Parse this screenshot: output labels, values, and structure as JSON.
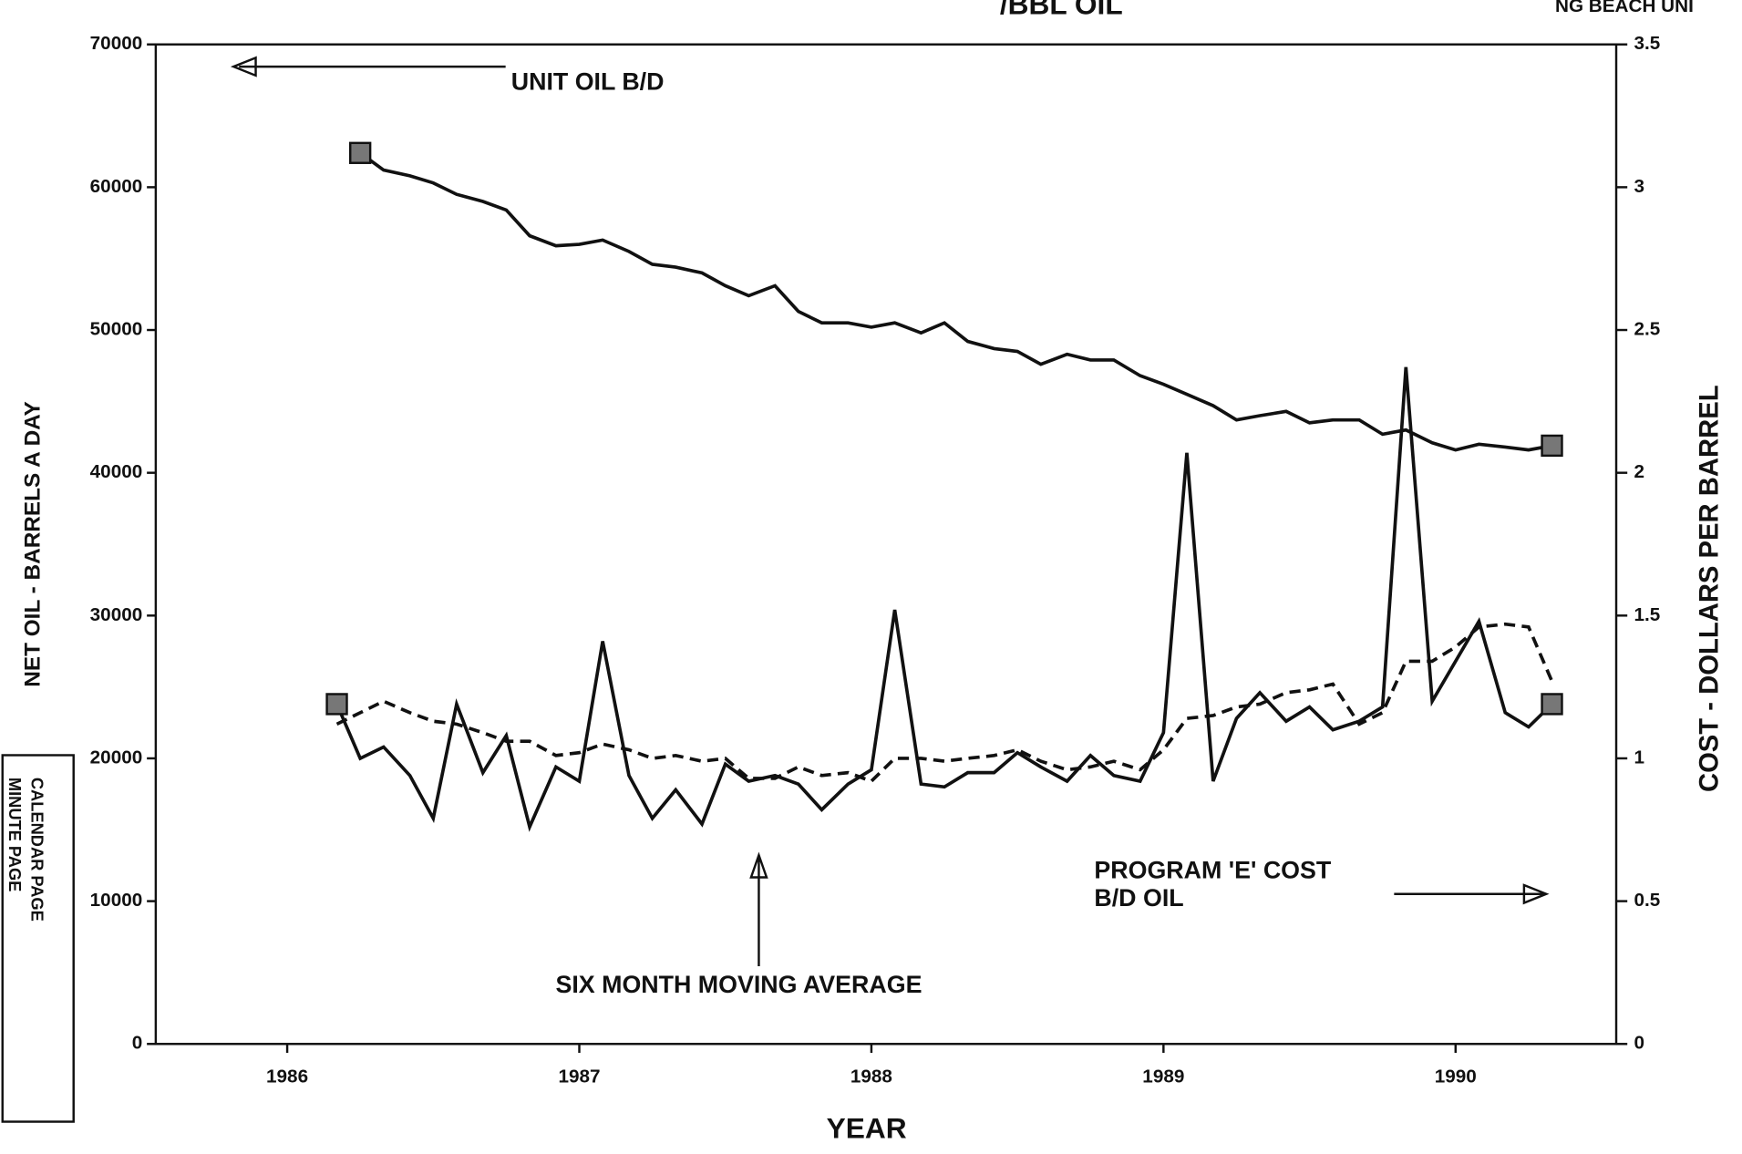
{
  "header": {
    "title": "/BBL OIL",
    "corner": "NG BEACH UNI"
  },
  "stamp": {
    "line1": "CALENDAR PAGE",
    "line2": "MINUTE PAGE"
  },
  "chart_data": {
    "type": "line",
    "xlabel": "YEAR",
    "ylabel": "NET OIL - BARRELS A DAY",
    "y2label": "COST - DOLLARS PER BARREL",
    "xlim": [
      1985.55,
      1990.55
    ],
    "xticks": [
      1986,
      1987,
      1988,
      1989,
      1990
    ],
    "ylim": [
      0,
      70000
    ],
    "yticks": [
      0,
      10000,
      20000,
      30000,
      40000,
      50000,
      60000,
      70000
    ],
    "y2lim": [
      0,
      3.5
    ],
    "y2ticks": [
      0,
      0.5,
      1,
      1.5,
      2,
      2.5,
      3,
      3.5
    ],
    "annotations": [
      "B/D OIL"
    ],
    "series": [
      {
        "name": "UNIT OIL B/D",
        "color": "#111111",
        "dash": false,
        "x": [
          1986.25,
          1986.33,
          1986.42,
          1986.5,
          1986.58,
          1986.67,
          1986.75,
          1986.83,
          1986.92,
          1987.0,
          1987.08,
          1987.17,
          1987.25,
          1987.33,
          1987.42,
          1987.5,
          1987.58,
          1987.67,
          1987.75,
          1987.83,
          1987.92,
          1988.0,
          1988.08,
          1988.17,
          1988.25,
          1988.33,
          1988.42,
          1988.5,
          1988.58,
          1988.67,
          1988.75,
          1988.83,
          1988.92,
          1989.0,
          1989.08,
          1989.17,
          1989.25,
          1989.33,
          1989.42,
          1989.5,
          1989.58,
          1989.67,
          1989.75,
          1989.83,
          1989.92,
          1990.0,
          1990.08,
          1990.17,
          1990.25,
          1990.33
        ],
        "values": [
          62400,
          61200,
          60800,
          60300,
          59500,
          59000,
          58400,
          56600,
          55900,
          56000,
          56300,
          55500,
          54600,
          54400,
          54000,
          53100,
          52400,
          53100,
          51300,
          50500,
          50500,
          50200,
          50500,
          49800,
          50500,
          49200,
          48700,
          48500,
          47600,
          48300,
          47900,
          47900,
          46800,
          46200,
          45500,
          44700,
          43700,
          44000,
          44300,
          43500,
          43700,
          43700,
          42700,
          43000,
          42100,
          41600,
          42000,
          41800,
          41600,
          41900
        ]
      },
      {
        "name": "PROGRAM 'E' COST",
        "color": "#111111",
        "dash": false,
        "axis": "y2",
        "x": [
          1986.17,
          1986.25,
          1986.33,
          1986.42,
          1986.5,
          1986.58,
          1986.67,
          1986.75,
          1986.83,
          1986.92,
          1987.0,
          1987.08,
          1987.17,
          1987.25,
          1987.33,
          1987.42,
          1987.5,
          1987.58,
          1987.67,
          1987.75,
          1987.83,
          1987.92,
          1988.0,
          1988.08,
          1988.17,
          1988.25,
          1988.33,
          1988.42,
          1988.5,
          1988.58,
          1988.67,
          1988.75,
          1988.83,
          1988.92,
          1989.0,
          1989.08,
          1989.17,
          1989.25,
          1989.33,
          1989.42,
          1989.5,
          1989.58,
          1989.67,
          1989.75,
          1989.83,
          1989.92,
          1990.0,
          1990.08,
          1990.17,
          1990.25,
          1990.33
        ],
        "values": [
          1.19,
          1.0,
          1.04,
          0.94,
          0.79,
          1.19,
          0.95,
          1.08,
          0.76,
          0.97,
          0.92,
          1.41,
          0.94,
          0.79,
          0.89,
          0.77,
          0.98,
          0.92,
          0.94,
          0.91,
          0.82,
          0.91,
          0.96,
          1.52,
          0.91,
          0.9,
          0.95,
          0.95,
          1.02,
          0.97,
          0.92,
          1.01,
          0.94,
          0.92,
          1.09,
          2.07,
          0.92,
          1.14,
          1.23,
          1.13,
          1.18,
          1.1,
          1.13,
          1.18,
          2.37,
          1.2,
          1.34,
          1.48,
          1.16,
          1.11,
          1.19
        ]
      },
      {
        "name": "SIX MONTH MOVING AVERAGE",
        "color": "#111111",
        "dash": true,
        "axis": "y2",
        "x": [
          1986.17,
          1986.25,
          1986.33,
          1986.42,
          1986.5,
          1986.58,
          1986.67,
          1986.75,
          1986.83,
          1986.92,
          1987.0,
          1987.08,
          1987.17,
          1987.25,
          1987.33,
          1987.42,
          1987.5,
          1987.58,
          1987.67,
          1987.75,
          1987.83,
          1987.92,
          1988.0,
          1988.08,
          1988.17,
          1988.25,
          1988.33,
          1988.42,
          1988.5,
          1988.58,
          1988.67,
          1988.75,
          1988.83,
          1988.92,
          1989.0,
          1989.08,
          1989.17,
          1989.25,
          1989.33,
          1989.42,
          1989.5,
          1989.58,
          1989.67,
          1989.75,
          1989.83,
          1989.92,
          1990.0,
          1990.08,
          1990.17,
          1990.25,
          1990.33
        ],
        "values": [
          1.12,
          1.16,
          1.2,
          1.16,
          1.13,
          1.12,
          1.09,
          1.06,
          1.06,
          1.01,
          1.02,
          1.05,
          1.03,
          1.0,
          1.01,
          0.99,
          1.0,
          0.93,
          0.93,
          0.97,
          0.94,
          0.95,
          0.92,
          1.0,
          1.0,
          0.99,
          1.0,
          1.01,
          1.03,
          0.99,
          0.96,
          0.97,
          0.99,
          0.96,
          1.03,
          1.14,
          1.15,
          1.18,
          1.19,
          1.23,
          1.24,
          1.26,
          1.12,
          1.16,
          1.34,
          1.34,
          1.39,
          1.46,
          1.47,
          1.46,
          1.27
        ]
      }
    ]
  }
}
